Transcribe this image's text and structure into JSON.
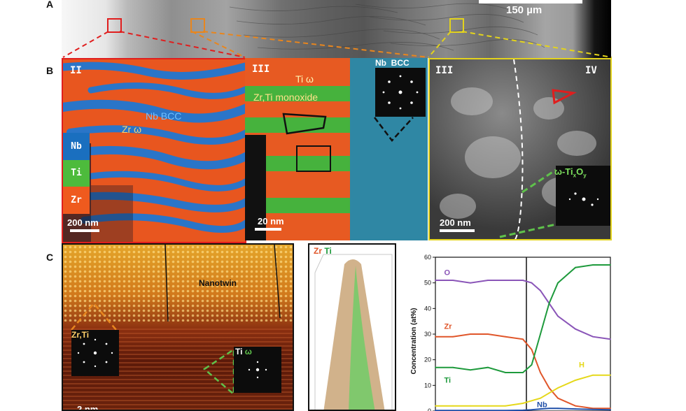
{
  "panels": {
    "a": {
      "letter": "A",
      "scalebar": "150 µm"
    },
    "b": {
      "letter": "B",
      "left": {
        "region": "II",
        "nb_bcc": "Nb BCC",
        "zr_omega": "Zr ω",
        "scalebar": "200 nm",
        "legend": [
          "Nb",
          "Ti",
          "Zr"
        ],
        "legend_colors": [
          "#1a6fbf",
          "#4dbb3c",
          "#ef5a1e"
        ]
      },
      "mid": {
        "region": "III",
        "ti_omega": "Ti ω",
        "monoxide": "Zr,Ti monoxide",
        "inset": "Nb  BCC",
        "scalebar": "20 nm"
      },
      "right": {
        "region_left": "III",
        "region_right": "IV",
        "inset": "ω-Ti",
        "inset_x": "x",
        "inset_o": "O",
        "inset_y": "y",
        "scalebar": "200 nm"
      }
    },
    "c": {
      "letter": "C",
      "hrtem": {
        "nanotwin": "Nanotwin",
        "inset_zrti": "Zr,Ti",
        "inset_ti": "Ti",
        "inset_omega": "ω",
        "scalebar": "2 nm"
      },
      "apt": {
        "zr": "Zr",
        "ti": "Ti"
      },
      "profile": {
        "ylabel": "Concentration (at%)"
      }
    }
  },
  "chart_data": {
    "type": "line",
    "ylabel": "Concentration (at%)",
    "ylim": [
      0,
      60
    ],
    "yticks": [
      0,
      10,
      20,
      30,
      40,
      50,
      60
    ],
    "x": [
      0,
      0.1,
      0.2,
      0.3,
      0.4,
      0.5,
      0.55,
      0.6,
      0.65,
      0.7,
      0.8,
      0.9,
      1.0
    ],
    "interface_x": 0.52,
    "series": [
      {
        "name": "O",
        "color": "#8a55b8",
        "values": [
          51,
          51,
          50,
          51,
          51,
          51,
          50,
          47,
          42,
          37,
          32,
          29,
          28
        ]
      },
      {
        "name": "Zr",
        "color": "#e0562a",
        "values": [
          29,
          29,
          30,
          30,
          29,
          28,
          24,
          15,
          9,
          5,
          2,
          1,
          1
        ]
      },
      {
        "name": "Ti",
        "color": "#1e9a3c",
        "values": [
          17,
          17,
          16,
          17,
          15,
          15,
          18,
          30,
          42,
          50,
          56,
          57,
          57
        ]
      },
      {
        "name": "H",
        "color": "#e5d81a",
        "values": [
          2,
          2,
          2,
          2,
          2,
          3,
          4,
          5,
          7,
          9,
          12,
          14,
          14
        ]
      },
      {
        "name": "Nb",
        "color": "#1f4fa8",
        "values": [
          0.2,
          0.2,
          0.2,
          0.2,
          0.2,
          0.3,
          0.5,
          0.8,
          1,
          1,
          0.8,
          0.6,
          0.5
        ]
      }
    ],
    "label_positions": "inline"
  }
}
